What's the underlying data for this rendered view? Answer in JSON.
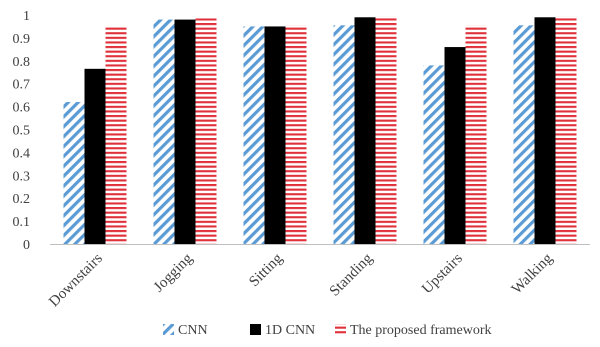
{
  "chart_data": {
    "type": "bar",
    "categories": [
      "Downstairs",
      "Jogging",
      "Sitting",
      "Standing",
      "Upstairs",
      "Walking"
    ],
    "series": [
      {
        "name": "CNN",
        "values": [
          0.62,
          0.98,
          0.95,
          0.955,
          0.78,
          0.955
        ],
        "color": "#5b9bd5",
        "pattern": "diagonal-stripes"
      },
      {
        "name": "1D CNN",
        "values": [
          0.765,
          0.98,
          0.95,
          0.99,
          0.86,
          0.99
        ],
        "color": "#000000",
        "pattern": "solid"
      },
      {
        "name": "The proposed framework",
        "values": [
          0.95,
          0.985,
          0.955,
          0.995,
          0.955,
          0.995
        ],
        "color": "#e0303a",
        "pattern": "horizontal-stripes"
      }
    ],
    "ylim": [
      0,
      1
    ],
    "yticks": [
      "0",
      "0.1",
      "0.2",
      "0.3",
      "0.4",
      "0.5",
      "0.6",
      "0.7",
      "0.8",
      "0.9",
      "1"
    ],
    "grid": false,
    "legend_position": "bottom"
  }
}
